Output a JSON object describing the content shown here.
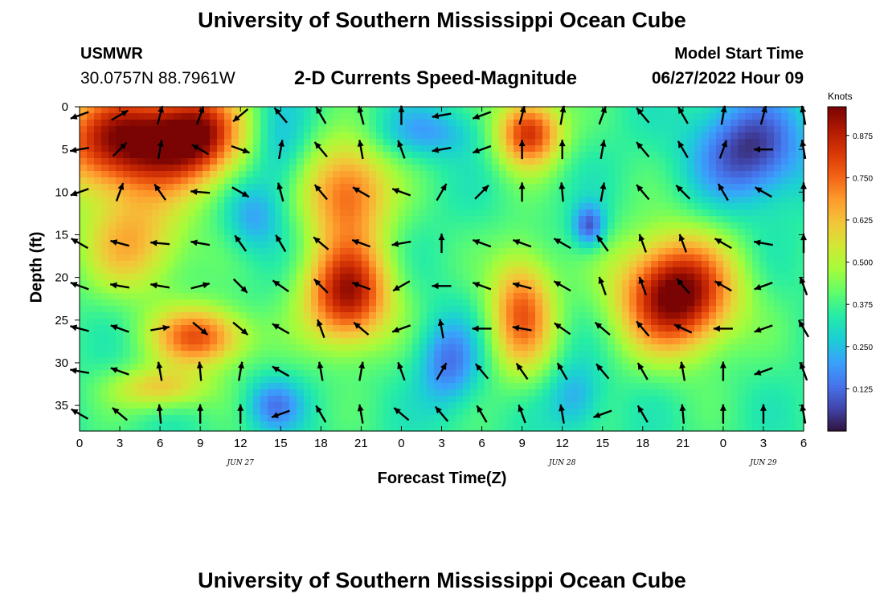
{
  "header": {
    "title": "University of Southern Mississippi Ocean Cube",
    "station_id": "USMWR",
    "coordinates": "30.0757N  88.7961W",
    "subtitle": "2-D Currents Speed-Magnitude",
    "model_start_label": "Model Start Time",
    "model_start_value": "06/27/2022 Hour 09"
  },
  "footer": {
    "title": "University of Southern Mississippi Ocean Cube"
  },
  "colorbar": {
    "units": "Knots",
    "ticks": [
      "0.125",
      "0.250",
      "0.375",
      "0.500",
      "0.625",
      "0.750",
      "0.875"
    ],
    "colors": [
      "#30123b",
      "#4145ab",
      "#4675ed",
      "#39a2fc",
      "#1bcfd4",
      "#24eca6",
      "#61fc6c",
      "#a4fc3b",
      "#d1e834",
      "#f3c63a",
      "#fe9b2d",
      "#f36315",
      "#d93806",
      "#b11901",
      "#7a0403"
    ]
  },
  "chart_data": {
    "type": "heatmap",
    "title": "2-D Currents Speed-Magnitude",
    "xlabel": "Forecast Time(Z)",
    "ylabel": "Depth (ft)",
    "x_range_hours_from_jun27_00z": [
      0,
      54
    ],
    "y_range_ft": [
      0,
      38
    ],
    "y_inverted": true,
    "x_tick_labels": [
      "0",
      "3",
      "6",
      "9",
      "12",
      "15",
      "18",
      "21",
      "0",
      "3",
      "6",
      "9",
      "12",
      "15",
      "18",
      "21",
      "0",
      "3",
      "6"
    ],
    "y_tick_labels": [
      "0",
      "5",
      "10",
      "15",
      "20",
      "25",
      "30",
      "35"
    ],
    "day_labels": [
      "JUN 27",
      "JUN 28",
      "JUN 29"
    ],
    "colorbar_range_knots": [
      0.0,
      0.96
    ],
    "features": [
      {
        "region": "hours 0-11, depth 0-12 ft",
        "speed_knots": 0.85
      },
      {
        "region": "hours 1-9, depth 10-20 ft",
        "speed_knots": 0.6
      },
      {
        "region": "hours 5-12, depth 24-30 ft",
        "speed_knots": 0.7
      },
      {
        "region": "hours 3-9, depth 30-36 ft",
        "speed_knots": 0.6
      },
      {
        "region": "hours 17-23, depth 5-30 ft",
        "speed_knots": 0.85
      },
      {
        "region": "hours 32-35, depth 0-8 ft",
        "speed_knots": 0.8
      },
      {
        "region": "hours 32-35, depth 18-30 ft",
        "speed_knots": 0.7
      },
      {
        "region": "hours 40-49, depth 14-30 ft",
        "speed_knots": 0.95
      },
      {
        "region": "hours 47-54, depth 0-12 ft",
        "speed_knots": 0.08
      },
      {
        "region": "hours 26-30, depth 25-36 ft",
        "speed_knots": 0.15
      },
      {
        "region": "hours 37-39, depth 12-16 ft",
        "speed_knots": 0.1
      },
      {
        "region": "hours 12-14, depth 10-17 ft",
        "speed_knots": 0.2
      }
    ],
    "vector_rows_depth_ft": [
      1,
      5,
      10,
      16,
      21,
      26,
      31,
      36
    ],
    "vector_columns_hours": [
      0,
      3,
      6,
      9,
      12,
      15,
      18,
      21,
      24,
      27,
      30,
      33,
      36,
      39,
      42,
      45,
      48,
      51,
      54
    ],
    "vector_directions_deg": [
      [
        250,
        60,
        15,
        20,
        230,
        320,
        330,
        345,
        0,
        260,
        250,
        15,
        10,
        20,
        320,
        330,
        10,
        15,
        350
      ],
      [
        260,
        45,
        10,
        300,
        110,
        10,
        320,
        350,
        340,
        260,
        250,
        0,
        0,
        10,
        320,
        330,
        20,
        270,
        350
      ],
      [
        250,
        20,
        325,
        275,
        120,
        345,
        320,
        300,
        290,
        30,
        45,
        0,
        355,
        10,
        320,
        315,
        330,
        300,
        0
      ],
      [
        300,
        285,
        275,
        280,
        325,
        330,
        310,
        290,
        260,
        0,
        290,
        290,
        300,
        325,
        340,
        340,
        300,
        280,
        0
      ],
      [
        290,
        280,
        280,
        75,
        135,
        305,
        315,
        290,
        240,
        270,
        290,
        285,
        300,
        340,
        340,
        320,
        300,
        250,
        340
      ],
      [
        285,
        290,
        80,
        130,
        130,
        300,
        340,
        310,
        250,
        350,
        270,
        280,
        305,
        310,
        320,
        295,
        270,
        250,
        330
      ],
      [
        280,
        290,
        350,
        355,
        10,
        300,
        350,
        10,
        340,
        30,
        320,
        325,
        330,
        320,
        330,
        350,
        0,
        250,
        340
      ],
      [
        300,
        310,
        355,
        0,
        0,
        250,
        330,
        350,
        310,
        320,
        330,
        340,
        350,
        250,
        330,
        355,
        0,
        0,
        350
      ]
    ]
  }
}
